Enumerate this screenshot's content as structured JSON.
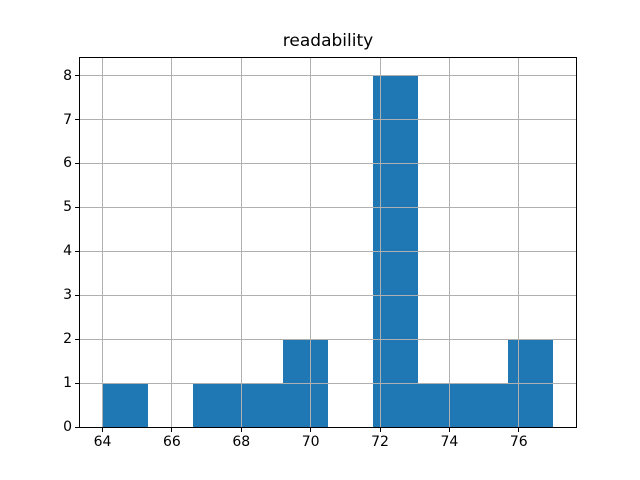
{
  "title": "readability",
  "chart_data": {
    "type": "histogram",
    "title": "readability",
    "xlabel": "",
    "ylabel": "",
    "bin_edges": [
      64.0,
      65.3,
      66.6,
      67.9,
      69.2,
      70.5,
      71.8,
      73.1,
      74.4,
      75.7,
      77.0
    ],
    "counts": [
      1,
      0,
      1,
      1,
      2,
      0,
      8,
      1,
      1,
      2
    ],
    "xlim": [
      63.35,
      77.65
    ],
    "ylim": [
      0,
      8.4
    ],
    "x_ticks": [
      64,
      66,
      68,
      70,
      72,
      74,
      76
    ],
    "y_ticks": [
      0,
      1,
      2,
      3,
      4,
      5,
      6,
      7,
      8
    ],
    "grid": true,
    "grid_over_bars": true,
    "legend": null,
    "bar_color": "#1f77b4",
    "grid_color": "#b0b0b0",
    "spine_color": "#000000",
    "text_color": "#000000",
    "background_color": "#ffffff"
  }
}
